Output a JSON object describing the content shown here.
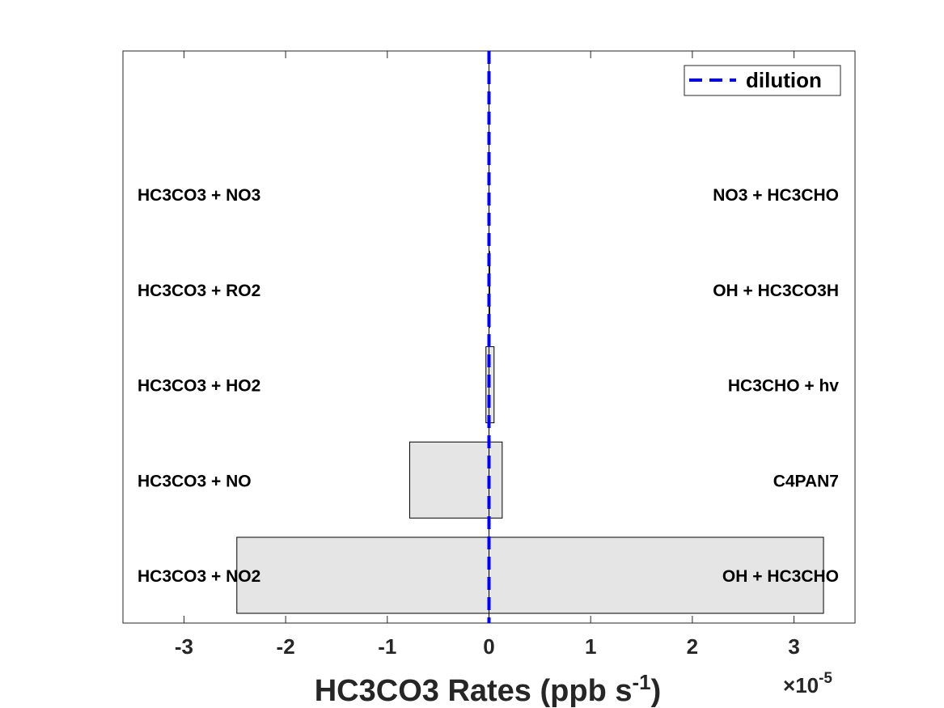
{
  "chart_data": {
    "type": "bar",
    "orientation": "horizontal",
    "xlabel": {
      "main": "HC3CO3 Rates (ppb s",
      "sup": "-1",
      "close": ")"
    },
    "x_multiplier": {
      "symbol": "×",
      "base": "10",
      "exponent": "-5"
    },
    "x_scale": 1e-05,
    "xlim": [
      -3.6,
      3.6
    ],
    "xticks": [
      -3,
      -2,
      -1,
      0,
      1,
      2,
      3
    ],
    "xtick_labels": [
      "-3",
      "-2",
      "-1",
      "0",
      "1",
      "2",
      "3"
    ],
    "grid": false,
    "bar_color": "#e5e5e5",
    "bar_edge_color": "#000000",
    "rows": [
      {
        "loss_label": "HC3CO3 + NO2",
        "loss": -2.48,
        "prod_label": "OH + HC3CHO",
        "prod": 3.29
      },
      {
        "loss_label": "HC3CO3 + NO",
        "loss": -0.78,
        "prod_label": "C4PAN7",
        "prod": 0.13
      },
      {
        "loss_label": "HC3CO3 + HO2",
        "loss": -0.03,
        "prod_label": "HC3CHO + hv",
        "prod": 0.05
      },
      {
        "loss_label": "HC3CO3 + RO2",
        "loss": 0.0,
        "prod_label": "OH + HC3CO3H",
        "prod": 0.005
      },
      {
        "loss_label": "HC3CO3 + NO3",
        "loss": 0.0,
        "prod_label": "NO3 + HC3CHO",
        "prod": 0.0
      }
    ],
    "reference_line": {
      "name": "dilution",
      "value": 0,
      "color": "#0000ff",
      "style": "dashed"
    },
    "legend": {
      "entries": [
        "dilution"
      ],
      "position": "top-right"
    }
  }
}
